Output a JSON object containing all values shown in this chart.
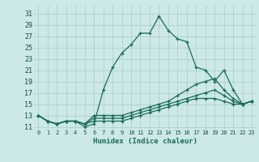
{
  "xlabel": "Humidex (Indice chaleur)",
  "bg_color": "#cce8e8",
  "grid_color": "#aacccc",
  "line_color": "#1a6b5a",
  "xlim": [
    -0.5,
    23.5
  ],
  "ylim": [
    10.5,
    32.5
  ],
  "xticks": [
    0,
    1,
    2,
    3,
    4,
    5,
    6,
    7,
    8,
    9,
    10,
    11,
    12,
    13,
    14,
    15,
    16,
    17,
    18,
    19,
    20,
    21,
    22,
    23
  ],
  "yticks": [
    11,
    13,
    15,
    17,
    19,
    21,
    23,
    25,
    27,
    29,
    31
  ],
  "series": [
    [
      13,
      12,
      11.5,
      12,
      12,
      11,
      11.5,
      17.5,
      21.5,
      24,
      25.5,
      27.5,
      27.5,
      30.5,
      28,
      26.5,
      26,
      21.5,
      21,
      19,
      21,
      17.5,
      15,
      15.5
    ],
    [
      13,
      12,
      11.5,
      12,
      12,
      11.5,
      13,
      13,
      13,
      13,
      13.5,
      14,
      14.5,
      15,
      15.5,
      16.5,
      17.5,
      18.5,
      19,
      19.5,
      17.5,
      16,
      15,
      15.5
    ],
    [
      13,
      12,
      11.5,
      12,
      12,
      11.5,
      12.5,
      12.5,
      12.5,
      12.5,
      13,
      13.5,
      14,
      14.5,
      15,
      15.5,
      16,
      16.5,
      17,
      17.5,
      16.5,
      15.5,
      15,
      15.5
    ],
    [
      13,
      12,
      11.5,
      12,
      12,
      11.5,
      12,
      12,
      12,
      12,
      12.5,
      13,
      13.5,
      14,
      14.5,
      15,
      15.5,
      16,
      16,
      16,
      15.5,
      15,
      15,
      15.5
    ]
  ]
}
